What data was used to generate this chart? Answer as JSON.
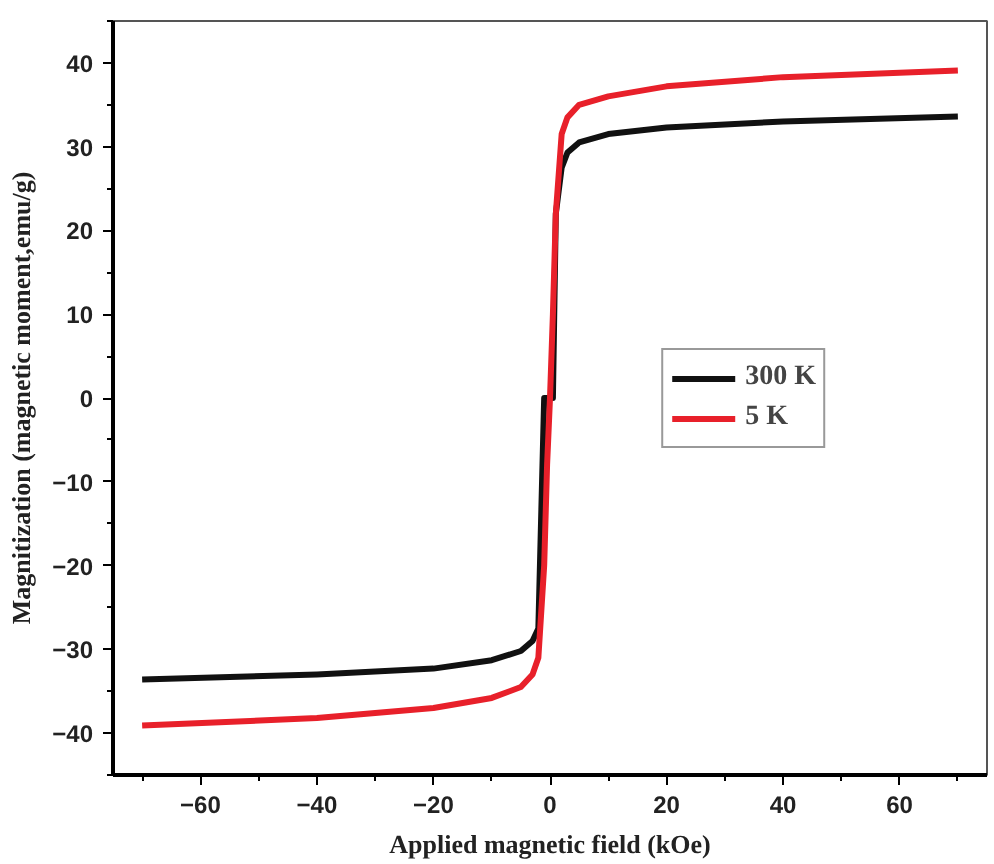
{
  "chart_data": {
    "type": "line",
    "xlabel": "Applied magnetic field (kOe)",
    "ylabel": "Magnitization (magnetic moment,emu/g)",
    "xlim": [
      -75,
      75
    ],
    "ylim": [
      -45,
      45
    ],
    "xticks": [
      -60,
      -40,
      -20,
      0,
      20,
      40,
      60
    ],
    "yticks": [
      -40,
      -30,
      -20,
      -10,
      0,
      10,
      20,
      30,
      40
    ],
    "grid": false,
    "legend": "right",
    "line_style": "solid",
    "marker": "none",
    "series": [
      {
        "name": "300 K",
        "color": "#111111",
        "x": [
          -70,
          -40,
          -20,
          -10,
          -5,
          -3,
          -2,
          -1,
          -0.5,
          0,
          0.5,
          1,
          2,
          3,
          5,
          10,
          20,
          40,
          70
        ],
        "values": [
          -33.6,
          -33.0,
          -32.3,
          -31.3,
          -30.2,
          -29.0,
          -27.5,
          null,
          null,
          null,
          null,
          22,
          27.5,
          29.3,
          30.5,
          31.5,
          32.3,
          33.0,
          33.6
        ]
      },
      {
        "name": "5 K",
        "color": "#e8202a",
        "x": [
          -70,
          -40,
          -20,
          -10,
          -5,
          -3,
          -2,
          -1,
          -0.5,
          0,
          0.5,
          1,
          2,
          3,
          5,
          10,
          20,
          40,
          70
        ],
        "values": [
          -39.1,
          -38.2,
          -37.0,
          -35.8,
          -34.5,
          -33.0,
          -31.0,
          -20,
          -8,
          0,
          10,
          22,
          31.5,
          33.5,
          35.0,
          36.0,
          37.2,
          38.3,
          39.1
        ]
      }
    ]
  }
}
